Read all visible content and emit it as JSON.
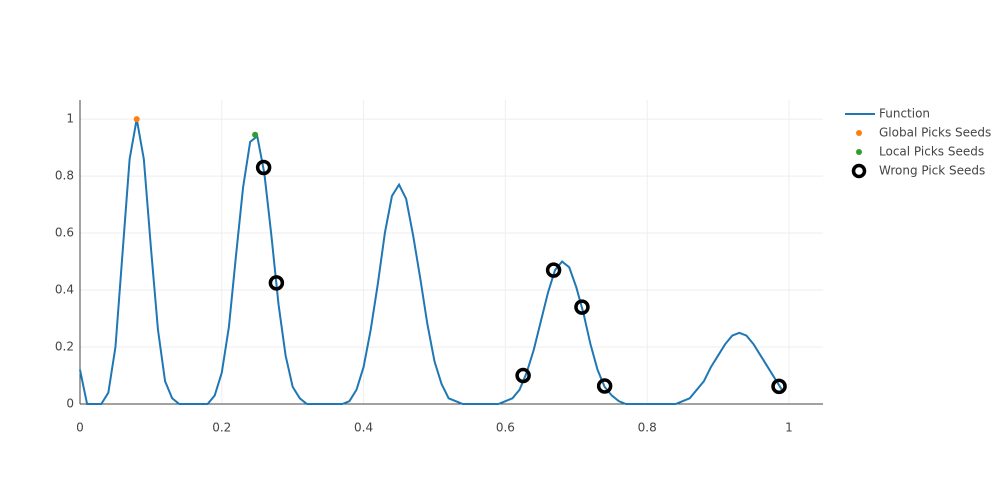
{
  "chart_data": {
    "type": "line",
    "xlim": [
      0,
      1.048
    ],
    "ylim": [
      0,
      1.067
    ],
    "xticks": [
      0,
      0.2,
      0.4,
      0.6,
      0.8,
      1
    ],
    "yticks": [
      0,
      0.2,
      0.4,
      0.6,
      0.8,
      1
    ],
    "grid": true,
    "legend": "right",
    "series": [
      {
        "name": "Function",
        "color": "#1f77b4",
        "mode": "lines",
        "x": [
          0,
          0.01,
          0.02,
          0.03,
          0.04,
          0.05,
          0.06,
          0.07,
          0.08,
          0.09,
          0.1,
          0.11,
          0.12,
          0.13,
          0.14,
          0.15,
          0.16,
          0.17,
          0.18,
          0.19,
          0.2,
          0.21,
          0.22,
          0.23,
          0.24,
          0.25,
          0.26,
          0.27,
          0.28,
          0.29,
          0.3,
          0.31,
          0.32,
          0.33,
          0.34,
          0.35,
          0.36,
          0.37,
          0.38,
          0.39,
          0.4,
          0.41,
          0.42,
          0.43,
          0.44,
          0.45,
          0.46,
          0.47,
          0.48,
          0.49,
          0.5,
          0.51,
          0.52,
          0.53,
          0.54,
          0.55,
          0.56,
          0.57,
          0.58,
          0.59,
          0.6,
          0.61,
          0.62,
          0.63,
          0.64,
          0.65,
          0.66,
          0.67,
          0.68,
          0.69,
          0.7,
          0.71,
          0.72,
          0.73,
          0.74,
          0.75,
          0.76,
          0.77,
          0.78,
          0.79,
          0.8,
          0.81,
          0.82,
          0.83,
          0.84,
          0.85,
          0.86,
          0.87,
          0.88,
          0.89,
          0.9,
          0.91,
          0.92,
          0.93,
          0.94,
          0.95,
          0.96,
          0.97,
          0.98,
          0.99
        ],
        "values": [
          0.12,
          0,
          0,
          0,
          0.04,
          0.2,
          0.53,
          0.86,
          1,
          0.86,
          0.55,
          0.26,
          0.08,
          0.02,
          0,
          0,
          0,
          0,
          0,
          0.03,
          0.11,
          0.27,
          0.52,
          0.76,
          0.92,
          0.94,
          0.81,
          0.59,
          0.35,
          0.17,
          0.06,
          0.02,
          0,
          0,
          0,
          0,
          0,
          0,
          0.01,
          0.05,
          0.13,
          0.26,
          0.42,
          0.6,
          0.73,
          0.77,
          0.72,
          0.59,
          0.44,
          0.28,
          0.15,
          0.07,
          0.02,
          0.01,
          0,
          0,
          0,
          0,
          0,
          0,
          0.01,
          0.02,
          0.05,
          0.11,
          0.19,
          0.29,
          0.39,
          0.47,
          0.5,
          0.48,
          0.41,
          0.32,
          0.21,
          0.12,
          0.06,
          0.03,
          0.01,
          0,
          0,
          0,
          0,
          0,
          0,
          0,
          0,
          0.01,
          0.02,
          0.05,
          0.08,
          0.13,
          0.17,
          0.21,
          0.24,
          0.25,
          0.24,
          0.21,
          0.17,
          0.13,
          0.09,
          0.05
        ]
      },
      {
        "name": "Global Picks Seeds",
        "color": "#ff7f0e",
        "mode": "markers",
        "x": [
          0.08
        ],
        "values": [
          1.0
        ]
      },
      {
        "name": "Local Picks Seeds",
        "color": "#2ca02c",
        "mode": "markers",
        "x": [
          0.247
        ],
        "values": [
          0.945
        ]
      },
      {
        "name": "Wrong Pick Seeds",
        "color": "#000000",
        "mode": "open-markers",
        "x": [
          0.259,
          0.277,
          0.625,
          0.668,
          0.708,
          0.74,
          0.986
        ],
        "values": [
          0.83,
          0.425,
          0.1,
          0.47,
          0.34,
          0.063,
          0.062
        ]
      }
    ]
  }
}
